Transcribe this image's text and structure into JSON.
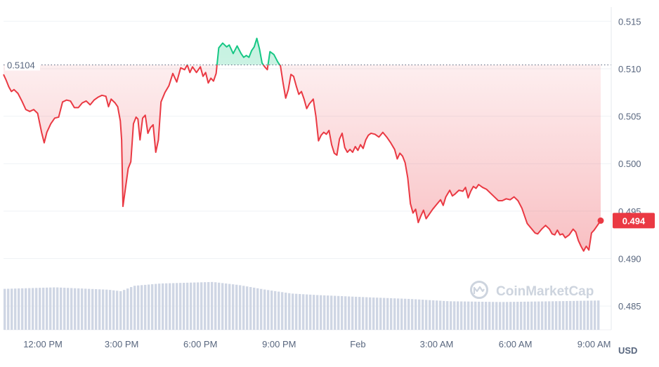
{
  "chart_data": {
    "type": "area",
    "title": "",
    "xlabel": "",
    "ylabel": "",
    "currency_label": "USD",
    "watermark": "CoinMarketCap",
    "open_price_label": "0.5104",
    "current_price_label": "0.494",
    "ylim": [
      0.4825,
      0.5165
    ],
    "y_ticks": [
      0.485,
      0.49,
      0.495,
      0.5,
      0.505,
      0.51,
      0.515
    ],
    "y_tick_labels": [
      "0.485",
      "0.490",
      "0.495",
      "0.500",
      "0.505",
      "0.510",
      "0.515"
    ],
    "x_ticks": [
      {
        "t": 1.5,
        "label": "12:00 PM"
      },
      {
        "t": 4.5,
        "label": "3:00 PM"
      },
      {
        "t": 7.5,
        "label": "6:00 PM"
      },
      {
        "t": 10.5,
        "label": "9:00 PM"
      },
      {
        "t": 13.5,
        "label": "Feb"
      },
      {
        "t": 16.5,
        "label": "3:00 AM"
      },
      {
        "t": 19.5,
        "label": "6:00 AM"
      },
      {
        "t": 22.5,
        "label": "9:00 AM"
      }
    ],
    "x_unit": "hours since 10:30 AM",
    "baseline": 0.5104,
    "last_value": 0.494,
    "colors": {
      "down": "#ea3943",
      "up": "#16c784",
      "grid": "#eff2f5",
      "axis_text": "#58667e",
      "volume": "#cfd6e4",
      "badge": "#ea3943"
    },
    "series": [
      {
        "points": [
          [
            0.0,
            0.5094
          ],
          [
            0.1,
            0.5088
          ],
          [
            0.2,
            0.5081
          ],
          [
            0.3,
            0.5076
          ],
          [
            0.4,
            0.5078
          ],
          [
            0.55,
            0.5074
          ],
          [
            0.7,
            0.5066
          ],
          [
            0.85,
            0.5057
          ],
          [
            1.0,
            0.5055
          ],
          [
            1.15,
            0.5057
          ],
          [
            1.3,
            0.5053
          ],
          [
            1.45,
            0.5033
          ],
          [
            1.55,
            0.5022
          ],
          [
            1.65,
            0.5033
          ],
          [
            1.8,
            0.5042
          ],
          [
            1.95,
            0.5048
          ],
          [
            2.1,
            0.5049
          ],
          [
            2.25,
            0.5065
          ],
          [
            2.4,
            0.5067
          ],
          [
            2.55,
            0.5066
          ],
          [
            2.7,
            0.5059
          ],
          [
            2.85,
            0.5059
          ],
          [
            3.0,
            0.5064
          ],
          [
            3.15,
            0.5066
          ],
          [
            3.3,
            0.5062
          ],
          [
            3.45,
            0.5067
          ],
          [
            3.6,
            0.507
          ],
          [
            3.75,
            0.5072
          ],
          [
            3.9,
            0.5071
          ],
          [
            4.0,
            0.506
          ],
          [
            4.1,
            0.5068
          ],
          [
            4.25,
            0.5064
          ],
          [
            4.35,
            0.506
          ],
          [
            4.45,
            0.5045
          ],
          [
            4.5,
            0.5025
          ],
          [
            4.55,
            0.4955
          ],
          [
            4.65,
            0.4975
          ],
          [
            4.75,
            0.4995
          ],
          [
            4.85,
            0.5002
          ],
          [
            4.95,
            0.5042
          ],
          [
            5.05,
            0.5049
          ],
          [
            5.12,
            0.5047
          ],
          [
            5.2,
            0.5025
          ],
          [
            5.3,
            0.5048
          ],
          [
            5.4,
            0.5051
          ],
          [
            5.5,
            0.5032
          ],
          [
            5.6,
            0.5038
          ],
          [
            5.7,
            0.5041
          ],
          [
            5.8,
            0.5012
          ],
          [
            5.9,
            0.5025
          ],
          [
            6.0,
            0.5065
          ],
          [
            6.15,
            0.5075
          ],
          [
            6.3,
            0.5082
          ],
          [
            6.45,
            0.5095
          ],
          [
            6.6,
            0.5086
          ],
          [
            6.75,
            0.5101
          ],
          [
            6.9,
            0.5099
          ],
          [
            7.0,
            0.5104
          ],
          [
            7.1,
            0.5096
          ],
          [
            7.2,
            0.5102
          ],
          [
            7.35,
            0.5096
          ],
          [
            7.5,
            0.5102
          ],
          [
            7.6,
            0.5092
          ],
          [
            7.7,
            0.5096
          ],
          [
            7.8,
            0.5085
          ],
          [
            7.9,
            0.509
          ],
          [
            8.0,
            0.5087
          ],
          [
            8.1,
            0.5095
          ],
          [
            8.2,
            0.5122
          ],
          [
            8.35,
            0.5127
          ],
          [
            8.5,
            0.5123
          ],
          [
            8.6,
            0.5125
          ],
          [
            8.75,
            0.5116
          ],
          [
            8.9,
            0.5124
          ],
          [
            9.05,
            0.5116
          ],
          [
            9.15,
            0.5112
          ],
          [
            9.25,
            0.5114
          ],
          [
            9.35,
            0.5112
          ],
          [
            9.45,
            0.5119
          ],
          [
            9.55,
            0.5123
          ],
          [
            9.65,
            0.5132
          ],
          [
            9.75,
            0.5121
          ],
          [
            9.85,
            0.5106
          ],
          [
            9.95,
            0.5102
          ],
          [
            10.05,
            0.5099
          ],
          [
            10.15,
            0.5118
          ],
          [
            10.3,
            0.5115
          ],
          [
            10.45,
            0.5107
          ],
          [
            10.55,
            0.5103
          ],
          [
            10.65,
            0.5085
          ],
          [
            10.75,
            0.5069
          ],
          [
            10.85,
            0.5078
          ],
          [
            10.95,
            0.5094
          ],
          [
            11.05,
            0.5092
          ],
          [
            11.15,
            0.5082
          ],
          [
            11.25,
            0.5073
          ],
          [
            11.35,
            0.5076
          ],
          [
            11.45,
            0.5068
          ],
          [
            11.55,
            0.5058
          ],
          [
            11.65,
            0.5063
          ],
          [
            11.8,
            0.5068
          ],
          [
            11.9,
            0.505
          ],
          [
            12.0,
            0.5024
          ],
          [
            12.1,
            0.503
          ],
          [
            12.2,
            0.5033
          ],
          [
            12.3,
            0.5031
          ],
          [
            12.4,
            0.5035
          ],
          [
            12.5,
            0.502
          ],
          [
            12.6,
            0.5011
          ],
          [
            12.7,
            0.5009
          ],
          [
            12.8,
            0.5026
          ],
          [
            12.9,
            0.5032
          ],
          [
            13.0,
            0.5017
          ],
          [
            13.1,
            0.5012
          ],
          [
            13.2,
            0.5015
          ],
          [
            13.3,
            0.5012
          ],
          [
            13.4,
            0.5018
          ],
          [
            13.5,
            0.5014
          ],
          [
            13.6,
            0.502
          ],
          [
            13.7,
            0.5016
          ],
          [
            13.8,
            0.5025
          ],
          [
            13.9,
            0.503
          ],
          [
            14.0,
            0.5032
          ],
          [
            14.15,
            0.5031
          ],
          [
            14.3,
            0.5028
          ],
          [
            14.45,
            0.5033
          ],
          [
            14.6,
            0.5028
          ],
          [
            14.75,
            0.5022
          ],
          [
            14.9,
            0.5015
          ],
          [
            15.0,
            0.5005
          ],
          [
            15.1,
            0.5011
          ],
          [
            15.2,
            0.5008
          ],
          [
            15.3,
            0.5001
          ],
          [
            15.4,
            0.4985
          ],
          [
            15.5,
            0.4958
          ],
          [
            15.6,
            0.4948
          ],
          [
            15.7,
            0.4952
          ],
          [
            15.8,
            0.4938
          ],
          [
            15.9,
            0.4945
          ],
          [
            16.0,
            0.4951
          ],
          [
            16.1,
            0.4942
          ],
          [
            16.2,
            0.4946
          ],
          [
            16.35,
            0.4952
          ],
          [
            16.5,
            0.4957
          ],
          [
            16.65,
            0.4962
          ],
          [
            16.75,
            0.4956
          ],
          [
            16.85,
            0.4965
          ],
          [
            17.0,
            0.4972
          ],
          [
            17.1,
            0.4966
          ],
          [
            17.2,
            0.4968
          ],
          [
            17.35,
            0.4972
          ],
          [
            17.5,
            0.4971
          ],
          [
            17.6,
            0.4975
          ],
          [
            17.7,
            0.4964
          ],
          [
            17.8,
            0.4971
          ],
          [
            17.9,
            0.4976
          ],
          [
            18.0,
            0.4974
          ],
          [
            18.1,
            0.4978
          ],
          [
            18.25,
            0.4975
          ],
          [
            18.4,
            0.4973
          ],
          [
            18.55,
            0.4969
          ],
          [
            18.7,
            0.4965
          ],
          [
            18.85,
            0.4961
          ],
          [
            19.0,
            0.4961
          ],
          [
            19.15,
            0.4963
          ],
          [
            19.3,
            0.4962
          ],
          [
            19.45,
            0.4965
          ],
          [
            19.6,
            0.4961
          ],
          [
            19.75,
            0.4953
          ],
          [
            19.85,
            0.4945
          ],
          [
            19.95,
            0.4937
          ],
          [
            20.1,
            0.4932
          ],
          [
            20.25,
            0.4927
          ],
          [
            20.35,
            0.4926
          ],
          [
            20.5,
            0.4931
          ],
          [
            20.65,
            0.4935
          ],
          [
            20.8,
            0.4931
          ],
          [
            20.9,
            0.4926
          ],
          [
            21.0,
            0.4925
          ],
          [
            21.1,
            0.493
          ],
          [
            21.2,
            0.4925
          ],
          [
            21.3,
            0.4926
          ],
          [
            21.4,
            0.4922
          ],
          [
            21.55,
            0.4925
          ],
          [
            21.7,
            0.4931
          ],
          [
            21.8,
            0.4928
          ],
          [
            21.9,
            0.4919
          ],
          [
            22.0,
            0.4913
          ],
          [
            22.1,
            0.4908
          ],
          [
            22.2,
            0.4913
          ],
          [
            22.3,
            0.4909
          ],
          [
            22.4,
            0.4927
          ],
          [
            22.5,
            0.493
          ],
          [
            22.6,
            0.4934
          ],
          [
            22.7,
            0.4938
          ],
          [
            22.75,
            0.494
          ]
        ]
      }
    ],
    "volume": {
      "start": 0.0,
      "end": 22.75,
      "bars": 170,
      "profile": [
        [
          0.0,
          0.53
        ],
        [
          2.0,
          0.55
        ],
        [
          4.0,
          0.52
        ],
        [
          4.5,
          0.5
        ],
        [
          5.0,
          0.57
        ],
        [
          6.0,
          0.6
        ],
        [
          8.0,
          0.62
        ],
        [
          9.0,
          0.58
        ],
        [
          10.0,
          0.52
        ],
        [
          11.0,
          0.47
        ],
        [
          12.0,
          0.45
        ],
        [
          14.0,
          0.42
        ],
        [
          15.5,
          0.4
        ],
        [
          17.0,
          0.37
        ],
        [
          19.0,
          0.36
        ],
        [
          21.0,
          0.37
        ],
        [
          22.75,
          0.38
        ]
      ]
    }
  }
}
